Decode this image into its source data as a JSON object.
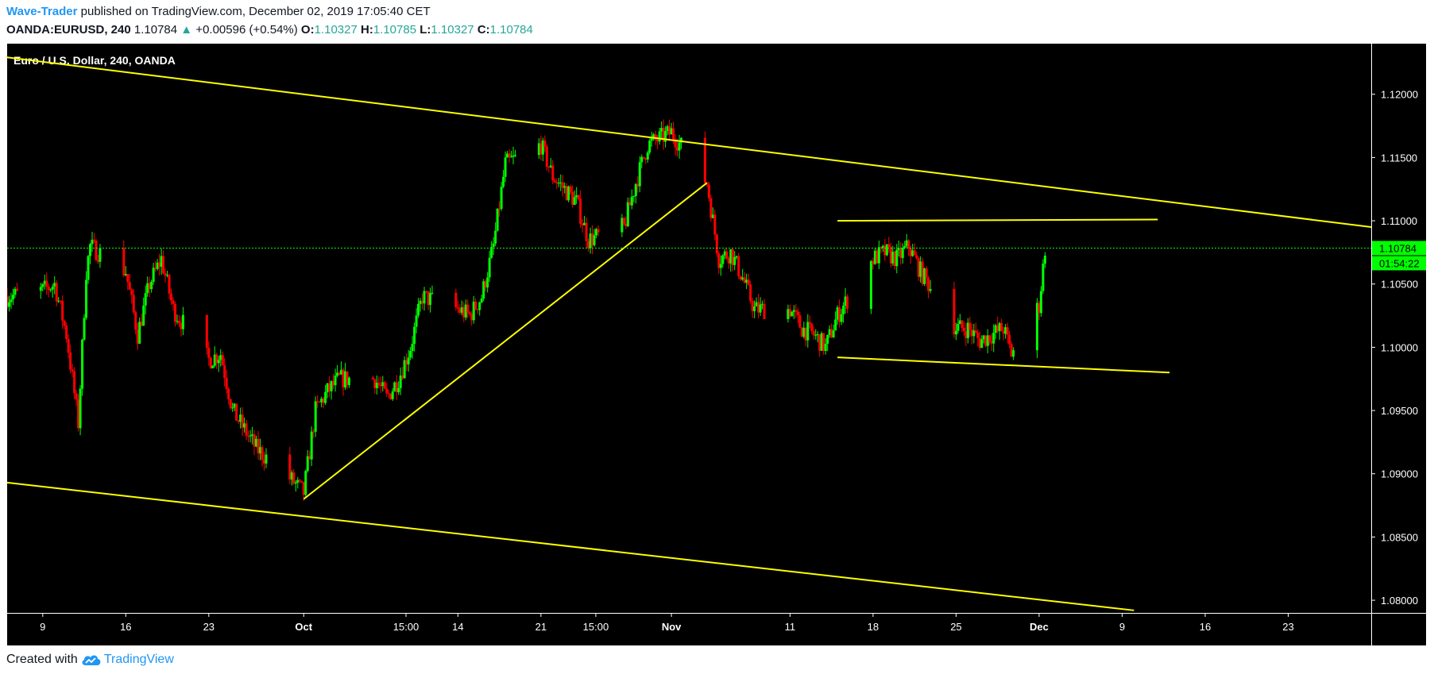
{
  "header": {
    "author": "Wave-Trader",
    "published": " published on TradingView.com, December 02, 2019 17:05:40 CET",
    "symbol": "OANDA:EURUSD, 240",
    "last": "1.10784",
    "change": "+0.00596 (+0.54%)",
    "o_label": "O:",
    "o": "1.10327",
    "h_label": "H:",
    "h": "1.10785",
    "l_label": "L:",
    "l": "1.10327",
    "c_label": "C:",
    "c": "1.10784"
  },
  "footer": {
    "created": "Created with",
    "brand": "TradingView"
  },
  "colors": {
    "background": "#000000",
    "up": "#00ff00",
    "down": "#ff0000",
    "trendline": "#ffff00",
    "price_tag": "#00ff00",
    "axis_text": "#ffffff"
  },
  "chart_data": {
    "type": "candlestick",
    "title": "Euro / U.S. Dollar, 240, OANDA",
    "ylim": [
      1.079,
      1.124
    ],
    "y_ticks": [
      {
        "value": 1.12,
        "label": "1.12000"
      },
      {
        "value": 1.115,
        "label": "1.11500"
      },
      {
        "value": 1.11,
        "label": "1.11000"
      },
      {
        "value": 1.105,
        "label": "1.10500"
      },
      {
        "value": 1.1,
        "label": "1.10000"
      },
      {
        "value": 1.095,
        "label": "1.09500"
      },
      {
        "value": 1.09,
        "label": "1.09000"
      },
      {
        "value": 1.085,
        "label": "1.08500"
      },
      {
        "value": 1.08,
        "label": "1.08000"
      }
    ],
    "x_ticks": [
      {
        "date": "2019-09-09",
        "label": "9"
      },
      {
        "date": "2019-09-16",
        "label": "16"
      },
      {
        "date": "2019-09-23",
        "label": "23"
      },
      {
        "date": "2019-10-01",
        "label": "Oct"
      },
      {
        "date": "2019-10-09 15:00",
        "label": "15:00"
      },
      {
        "date": "2019-10-14",
        "label": "14"
      },
      {
        "date": "2019-10-21",
        "label": "21"
      },
      {
        "date": "2019-10-25 15:00",
        "label": "15:00"
      },
      {
        "date": "2019-11-01",
        "label": "Nov"
      },
      {
        "date": "2019-11-11",
        "label": "11"
      },
      {
        "date": "2019-11-18",
        "label": "18"
      },
      {
        "date": "2019-11-25",
        "label": "25"
      },
      {
        "date": "2019-12-02",
        "label": "Dec"
      },
      {
        "date": "2019-12-09",
        "label": "9"
      },
      {
        "date": "2019-12-16",
        "label": "16"
      },
      {
        "date": "2019-12-23",
        "label": "23"
      }
    ],
    "price_line": {
      "value": 1.10784,
      "label": "1.10784",
      "countdown": "01:54:22"
    },
    "price_path": [
      [
        "2019-09-06",
        1.104
      ],
      [
        "2019-09-09",
        1.1045
      ],
      [
        "2019-09-10",
        1.105
      ],
      [
        "2019-09-11",
        1.101
      ],
      [
        "2019-09-12",
        1.094
      ],
      [
        "2019-09-12 16:00",
        1.106
      ],
      [
        "2019-09-13",
        1.108
      ],
      [
        "2019-09-16",
        1.106
      ],
      [
        "2019-09-17",
        1.101
      ],
      [
        "2019-09-18",
        1.105
      ],
      [
        "2019-09-19",
        1.107
      ],
      [
        "2019-09-20",
        1.103
      ],
      [
        "2019-09-23",
        1.099
      ],
      [
        "2019-09-24",
        1.0995
      ],
      [
        "2019-09-25",
        1.095
      ],
      [
        "2019-09-26",
        1.0935
      ],
      [
        "2019-09-27",
        1.092
      ],
      [
        "2019-09-30",
        1.0895
      ],
      [
        "2019-10-01",
        1.0885
      ],
      [
        "2019-10-02",
        1.095
      ],
      [
        "2019-10-03",
        1.0965
      ],
      [
        "2019-10-04",
        1.0975
      ],
      [
        "2019-10-07",
        1.0975
      ],
      [
        "2019-10-08",
        1.096
      ],
      [
        "2019-10-09",
        1.0975
      ],
      [
        "2019-10-10",
        1.1
      ],
      [
        "2019-10-11",
        1.104
      ],
      [
        "2019-10-14",
        1.103
      ],
      [
        "2019-10-15",
        1.1025
      ],
      [
        "2019-10-16",
        1.104
      ],
      [
        "2019-10-17",
        1.108
      ],
      [
        "2019-10-18",
        1.1145
      ],
      [
        "2019-10-21",
        1.116
      ],
      [
        "2019-10-22",
        1.1135
      ],
      [
        "2019-10-23",
        1.1125
      ],
      [
        "2019-10-24",
        1.1115
      ],
      [
        "2019-10-25",
        1.1085
      ],
      [
        "2019-10-28",
        1.1095
      ],
      [
        "2019-10-29",
        1.113
      ],
      [
        "2019-10-30",
        1.116
      ],
      [
        "2019-10-31",
        1.1165
      ],
      [
        "2019-11-01",
        1.117
      ],
      [
        "2019-11-04",
        1.113
      ],
      [
        "2019-11-05",
        1.107
      ],
      [
        "2019-11-06",
        1.1075
      ],
      [
        "2019-11-07",
        1.1055
      ],
      [
        "2019-11-08",
        1.103
      ],
      [
        "2019-11-11",
        1.103
      ],
      [
        "2019-11-12",
        1.1015
      ],
      [
        "2019-11-13",
        1.101
      ],
      [
        "2019-11-14",
        1.1
      ],
      [
        "2019-11-15",
        1.1025
      ],
      [
        "2019-11-18",
        1.107
      ],
      [
        "2019-11-19",
        1.1075
      ],
      [
        "2019-11-20",
        1.107
      ],
      [
        "2019-11-21",
        1.108
      ],
      [
        "2019-11-22",
        1.106
      ],
      [
        "2019-11-25",
        1.1015
      ],
      [
        "2019-11-26",
        1.1015
      ],
      [
        "2019-11-27",
        1.1005
      ],
      [
        "2019-11-28",
        1.101
      ],
      [
        "2019-11-29",
        1.1015
      ],
      [
        "2019-11-29 16:00",
        1.0995
      ],
      [
        "2019-12-02",
        1.1033
      ],
      [
        "2019-12-02 12:00",
        1.10784
      ]
    ],
    "trendlines": [
      {
        "name": "upper-channel",
        "start": [
          "2019-09-01",
          1.1235
        ],
        "end": [
          "2019-12-30",
          1.1095
        ]
      },
      {
        "name": "lower-channel",
        "start": [
          "2019-09-06",
          1.0893
        ],
        "end": [
          "2019-12-10",
          1.0792
        ]
      },
      {
        "name": "rising-support",
        "start": [
          "2019-10-01",
          1.088
        ],
        "end": [
          "2019-11-04",
          1.113
        ]
      },
      {
        "name": "range-top",
        "start": [
          "2019-11-15",
          1.11
        ],
        "end": [
          "2019-12-12",
          1.1101
        ]
      },
      {
        "name": "range-bottom",
        "start": [
          "2019-11-15",
          1.0992
        ],
        "end": [
          "2019-12-13",
          1.098
        ]
      }
    ]
  }
}
